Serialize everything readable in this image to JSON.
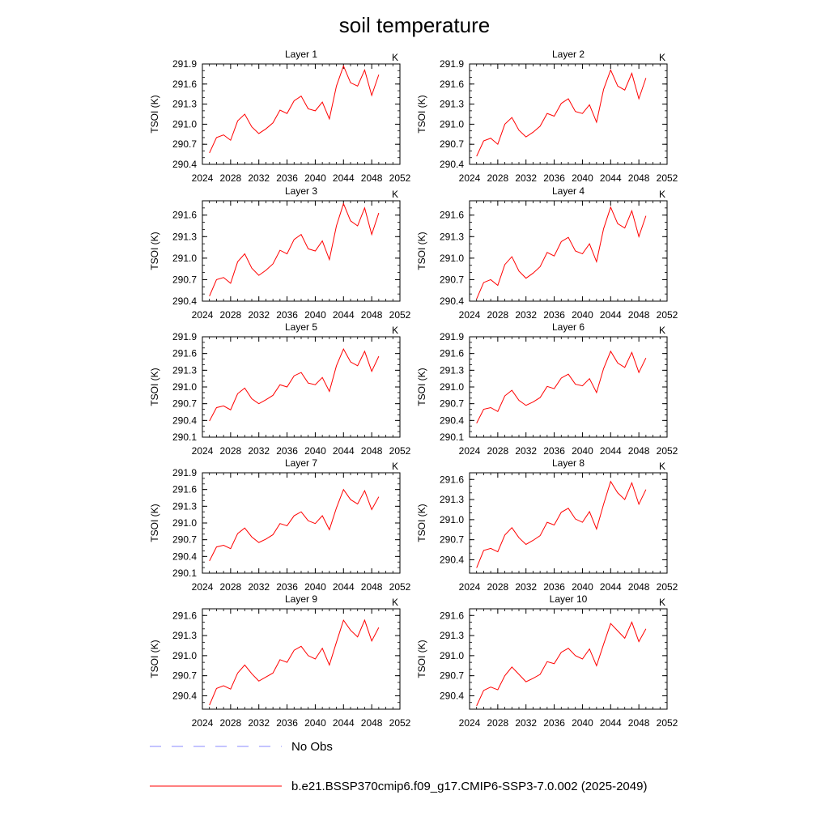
{
  "figure": {
    "title": "soil temperature",
    "series_color": "#ff0000",
    "obs_color": "#8888ff"
  },
  "legend": [
    {
      "label": "No Obs",
      "style": "dashed",
      "color": "#8888ff"
    },
    {
      "label": "b.e21.BSSP370cmip6.f09_g17.CMIP6-SSP3-7.0.002 (2025-2049)",
      "style": "solid",
      "color": "#ff0000"
    }
  ],
  "chart_data": [
    {
      "type": "line",
      "title": "Layer 1",
      "unit": "K",
      "ylabel": "TSOI  (K)",
      "xlim": [
        2024,
        2052
      ],
      "xticks": [
        "2024",
        "2028",
        "2032",
        "2036",
        "2040",
        "2044",
        "2048",
        "2052"
      ],
      "ylim": [
        290.4,
        291.9
      ],
      "yticks": [
        "290.4",
        "290.7",
        "291.0",
        "291.3",
        "291.6",
        "291.9"
      ],
      "x": [
        2025,
        2026,
        2027,
        2028,
        2029,
        2030,
        2031,
        2032,
        2033,
        2034,
        2035,
        2036,
        2037,
        2038,
        2039,
        2040,
        2041,
        2042,
        2043,
        2044,
        2045,
        2046,
        2047,
        2048,
        2049
      ],
      "series": [
        {
          "name": "b.e21.BSSP370cmip6.f09_g17.CMIP6-SSP3-7.0.002 (2025-2049)",
          "values": [
            290.57,
            290.8,
            290.84,
            290.76,
            291.05,
            291.15,
            290.96,
            290.86,
            290.93,
            291.02,
            291.21,
            291.16,
            291.35,
            291.42,
            291.23,
            291.2,
            291.33,
            291.08,
            291.57,
            291.87,
            291.62,
            291.57,
            291.81,
            291.43,
            291.74
          ]
        }
      ]
    },
    {
      "type": "line",
      "title": "Layer 2",
      "unit": "K",
      "ylabel": "TSOI  (K)",
      "xlim": [
        2024,
        2052
      ],
      "xticks": [
        "2024",
        "2028",
        "2032",
        "2036",
        "2040",
        "2044",
        "2048",
        "2052"
      ],
      "ylim": [
        290.4,
        291.9
      ],
      "yticks": [
        "290.4",
        "290.7",
        "291.0",
        "291.3",
        "291.6",
        "291.9"
      ],
      "x": [
        2025,
        2026,
        2027,
        2028,
        2029,
        2030,
        2031,
        2032,
        2033,
        2034,
        2035,
        2036,
        2037,
        2038,
        2039,
        2040,
        2041,
        2042,
        2043,
        2044,
        2045,
        2046,
        2047,
        2048,
        2049
      ],
      "series": [
        {
          "name": "b.e21.BSSP370cmip6.f09_g17.CMIP6-SSP3-7.0.002 (2025-2049)",
          "values": [
            290.52,
            290.75,
            290.79,
            290.7,
            291.0,
            291.1,
            290.91,
            290.81,
            290.88,
            290.97,
            291.16,
            291.12,
            291.31,
            291.38,
            291.19,
            291.16,
            291.29,
            291.03,
            291.52,
            291.81,
            291.57,
            291.51,
            291.76,
            291.38,
            291.69
          ]
        }
      ]
    },
    {
      "type": "line",
      "title": "Layer 3",
      "unit": "K",
      "ylabel": "TSOI  (K)",
      "xlim": [
        2024,
        2052
      ],
      "xticks": [
        "2024",
        "2028",
        "2032",
        "2036",
        "2040",
        "2044",
        "2048",
        "2052"
      ],
      "ylim": [
        290.4,
        291.8
      ],
      "yticks": [
        "290.4",
        "290.7",
        "291.0",
        "291.3",
        "291.6"
      ],
      "x": [
        2025,
        2026,
        2027,
        2028,
        2029,
        2030,
        2031,
        2032,
        2033,
        2034,
        2035,
        2036,
        2037,
        2038,
        2039,
        2040,
        2041,
        2042,
        2043,
        2044,
        2045,
        2046,
        2047,
        2048,
        2049
      ],
      "series": [
        {
          "name": "b.e21.BSSP370cmip6.f09_g17.CMIP6-SSP3-7.0.002 (2025-2049)",
          "values": [
            290.47,
            290.7,
            290.73,
            290.65,
            290.95,
            291.06,
            290.86,
            290.76,
            290.83,
            290.92,
            291.11,
            291.06,
            291.26,
            291.33,
            291.13,
            291.1,
            291.24,
            290.98,
            291.45,
            291.76,
            291.52,
            291.45,
            291.7,
            291.33,
            291.63
          ]
        }
      ]
    },
    {
      "type": "line",
      "title": "Layer 4",
      "unit": "K",
      "ylabel": "TSOI  (K)",
      "xlim": [
        2024,
        2052
      ],
      "xticks": [
        "2024",
        "2028",
        "2032",
        "2036",
        "2040",
        "2044",
        "2048",
        "2052"
      ],
      "ylim": [
        290.4,
        291.8
      ],
      "yticks": [
        "290.4",
        "290.7",
        "291.0",
        "291.3",
        "291.6"
      ],
      "x": [
        2025,
        2026,
        2027,
        2028,
        2029,
        2030,
        2031,
        2032,
        2033,
        2034,
        2035,
        2036,
        2037,
        2038,
        2039,
        2040,
        2041,
        2042,
        2043,
        2044,
        2045,
        2046,
        2047,
        2048,
        2049
      ],
      "series": [
        {
          "name": "b.e21.BSSP370cmip6.f09_g17.CMIP6-SSP3-7.0.002 (2025-2049)",
          "values": [
            290.43,
            290.66,
            290.7,
            290.62,
            290.91,
            291.02,
            290.82,
            290.72,
            290.79,
            290.88,
            291.08,
            291.03,
            291.23,
            291.29,
            291.1,
            291.06,
            291.2,
            290.95,
            291.41,
            291.71,
            291.48,
            291.42,
            291.66,
            291.3,
            291.59
          ]
        }
      ]
    },
    {
      "type": "line",
      "title": "Layer 5",
      "unit": "K",
      "ylabel": "TSOI  (K)",
      "xlim": [
        2024,
        2052
      ],
      "xticks": [
        "2024",
        "2028",
        "2032",
        "2036",
        "2040",
        "2044",
        "2048",
        "2052"
      ],
      "ylim": [
        290.1,
        291.9
      ],
      "yticks": [
        "290.1",
        "290.4",
        "290.7",
        "291.0",
        "291.3",
        "291.6",
        "291.9"
      ],
      "x": [
        2025,
        2026,
        2027,
        2028,
        2029,
        2030,
        2031,
        2032,
        2033,
        2034,
        2035,
        2036,
        2037,
        2038,
        2039,
        2040,
        2041,
        2042,
        2043,
        2044,
        2045,
        2046,
        2047,
        2048,
        2049
      ],
      "series": [
        {
          "name": "b.e21.BSSP370cmip6.f09_g17.CMIP6-SSP3-7.0.002 (2025-2049)",
          "values": [
            290.39,
            290.63,
            290.66,
            290.59,
            290.88,
            290.98,
            290.79,
            290.7,
            290.77,
            290.85,
            291.04,
            291.0,
            291.2,
            291.26,
            291.07,
            291.04,
            291.17,
            290.92,
            291.38,
            291.68,
            291.45,
            291.38,
            291.64,
            291.28,
            291.55
          ]
        }
      ]
    },
    {
      "type": "line",
      "title": "Layer 6",
      "unit": "K",
      "ylabel": "TSOI  (K)",
      "xlim": [
        2024,
        2052
      ],
      "xticks": [
        "2024",
        "2028",
        "2032",
        "2036",
        "2040",
        "2044",
        "2048",
        "2052"
      ],
      "ylim": [
        290.1,
        291.9
      ],
      "yticks": [
        "290.1",
        "290.4",
        "290.7",
        "291.0",
        "291.3",
        "291.6",
        "291.9"
      ],
      "x": [
        2025,
        2026,
        2027,
        2028,
        2029,
        2030,
        2031,
        2032,
        2033,
        2034,
        2035,
        2036,
        2037,
        2038,
        2039,
        2040,
        2041,
        2042,
        2043,
        2044,
        2045,
        2046,
        2047,
        2048,
        2049
      ],
      "series": [
        {
          "name": "b.e21.BSSP370cmip6.f09_g17.CMIP6-SSP3-7.0.002 (2025-2049)",
          "values": [
            290.35,
            290.6,
            290.63,
            290.56,
            290.84,
            290.94,
            290.76,
            290.67,
            290.73,
            290.81,
            291.01,
            290.97,
            291.16,
            291.23,
            291.05,
            291.02,
            291.15,
            290.9,
            291.33,
            291.64,
            291.43,
            291.35,
            291.62,
            291.26,
            291.52
          ]
        }
      ]
    },
    {
      "type": "line",
      "title": "Layer 7",
      "unit": "K",
      "ylabel": "TSOI  (K)",
      "xlim": [
        2024,
        2052
      ],
      "xticks": [
        "2024",
        "2028",
        "2032",
        "2036",
        "2040",
        "2044",
        "2048",
        "2052"
      ],
      "ylim": [
        290.1,
        291.9
      ],
      "yticks": [
        "290.1",
        "290.4",
        "290.7",
        "291.0",
        "291.3",
        "291.6",
        "291.9"
      ],
      "x": [
        2025,
        2026,
        2027,
        2028,
        2029,
        2030,
        2031,
        2032,
        2033,
        2034,
        2035,
        2036,
        2037,
        2038,
        2039,
        2040,
        2041,
        2042,
        2043,
        2044,
        2045,
        2046,
        2047,
        2048,
        2049
      ],
      "series": [
        {
          "name": "b.e21.BSSP370cmip6.f09_g17.CMIP6-SSP3-7.0.002 (2025-2049)",
          "values": [
            290.32,
            290.57,
            290.6,
            290.54,
            290.81,
            290.91,
            290.75,
            290.65,
            290.71,
            290.79,
            290.99,
            290.95,
            291.13,
            291.2,
            291.04,
            290.99,
            291.13,
            290.88,
            291.27,
            291.6,
            291.42,
            291.34,
            291.58,
            291.24,
            291.47
          ]
        }
      ]
    },
    {
      "type": "line",
      "title": "Layer 8",
      "unit": "K",
      "ylabel": "TSOI  (K)",
      "xlim": [
        2024,
        2052
      ],
      "xticks": [
        "2024",
        "2028",
        "2032",
        "2036",
        "2040",
        "2044",
        "2048",
        "2052"
      ],
      "ylim": [
        290.2,
        291.7
      ],
      "yticks": [
        "290.4",
        "290.7",
        "291.0",
        "291.3",
        "291.6"
      ],
      "x": [
        2025,
        2026,
        2027,
        2028,
        2029,
        2030,
        2031,
        2032,
        2033,
        2034,
        2035,
        2036,
        2037,
        2038,
        2039,
        2040,
        2041,
        2042,
        2043,
        2044,
        2045,
        2046,
        2047,
        2048,
        2049
      ],
      "series": [
        {
          "name": "b.e21.BSSP370cmip6.f09_g17.CMIP6-SSP3-7.0.002 (2025-2049)",
          "values": [
            290.28,
            290.54,
            290.57,
            290.52,
            290.77,
            290.88,
            290.73,
            290.63,
            290.69,
            290.76,
            290.96,
            290.92,
            291.11,
            291.17,
            291.01,
            290.96,
            291.12,
            290.86,
            291.23,
            291.57,
            291.4,
            291.3,
            291.55,
            291.23,
            291.45
          ]
        }
      ]
    },
    {
      "type": "line",
      "title": "Layer 9",
      "unit": "K",
      "ylabel": "TSOI  (K)",
      "xlim": [
        2024,
        2052
      ],
      "xticks": [
        "2024",
        "2028",
        "2032",
        "2036",
        "2040",
        "2044",
        "2048",
        "2052"
      ],
      "ylim": [
        290.2,
        291.7
      ],
      "yticks": [
        "290.4",
        "290.7",
        "291.0",
        "291.3",
        "291.6"
      ],
      "x": [
        2025,
        2026,
        2027,
        2028,
        2029,
        2030,
        2031,
        2032,
        2033,
        2034,
        2035,
        2036,
        2037,
        2038,
        2039,
        2040,
        2041,
        2042,
        2043,
        2044,
        2045,
        2046,
        2047,
        2048,
        2049
      ],
      "series": [
        {
          "name": "b.e21.BSSP370cmip6.f09_g17.CMIP6-SSP3-7.0.002 (2025-2049)",
          "values": [
            290.26,
            290.51,
            290.55,
            290.5,
            290.74,
            290.86,
            290.73,
            290.62,
            290.68,
            290.74,
            290.94,
            290.9,
            291.08,
            291.14,
            291.0,
            290.95,
            291.11,
            290.86,
            291.2,
            291.53,
            291.38,
            291.28,
            291.53,
            291.22,
            291.42
          ]
        }
      ]
    },
    {
      "type": "line",
      "title": "Layer 10",
      "unit": "K",
      "ylabel": "TSOI  (K)",
      "xlim": [
        2024,
        2052
      ],
      "xticks": [
        "2024",
        "2028",
        "2032",
        "2036",
        "2040",
        "2044",
        "2048",
        "2052"
      ],
      "ylim": [
        290.2,
        291.7
      ],
      "yticks": [
        "290.4",
        "290.7",
        "291.0",
        "291.3",
        "291.6"
      ],
      "x": [
        2025,
        2026,
        2027,
        2028,
        2029,
        2030,
        2031,
        2032,
        2033,
        2034,
        2035,
        2036,
        2037,
        2038,
        2039,
        2040,
        2041,
        2042,
        2043,
        2044,
        2045,
        2046,
        2047,
        2048,
        2049
      ],
      "series": [
        {
          "name": "b.e21.BSSP370cmip6.f09_g17.CMIP6-SSP3-7.0.002 (2025-2049)",
          "values": [
            290.25,
            290.48,
            290.53,
            290.49,
            290.7,
            290.83,
            290.72,
            290.61,
            290.66,
            290.72,
            290.91,
            290.88,
            291.05,
            291.11,
            291.0,
            290.95,
            291.1,
            290.85,
            291.17,
            291.48,
            291.37,
            291.26,
            291.5,
            291.21,
            291.4
          ]
        }
      ]
    }
  ]
}
